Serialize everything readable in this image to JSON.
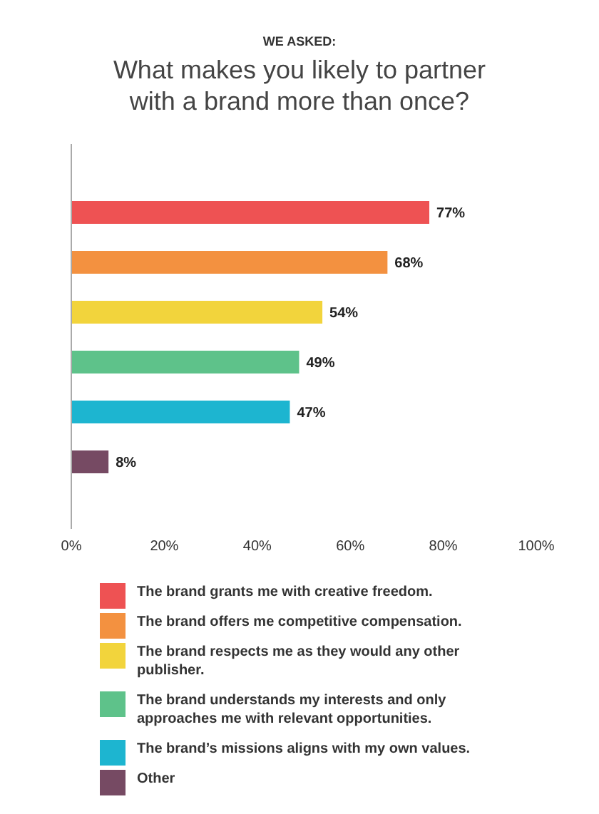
{
  "chart_data": {
    "type": "bar",
    "orientation": "horizontal",
    "subtitle": "WE ASKED:",
    "title": "What makes you likely to partner with a brand more than once?",
    "categories": [
      null
    ],
    "series": [
      {
        "name": "The brand grants me with creative freedom.",
        "color": "#ee5253",
        "values": [
          77
        ],
        "value_labels": [
          "77%"
        ]
      },
      {
        "name": "The brand offers me competitive compensation.",
        "color": "#f39140",
        "values": [
          68
        ],
        "value_labels": [
          "68%"
        ]
      },
      {
        "name": "The brand respects me as they would any other publisher.",
        "color": "#f2d43c",
        "values": [
          54
        ],
        "value_labels": [
          "54%"
        ]
      },
      {
        "name": "The brand understands my interests and only approaches me with relevant opportunities.",
        "color": "#5ec28a",
        "values": [
          49
        ],
        "value_labels": [
          "49%"
        ]
      },
      {
        "name": "The brand’s missions aligns with my own values.",
        "color": "#1db5d0",
        "values": [
          47
        ],
        "value_labels": [
          "47%"
        ]
      },
      {
        "name": "Other",
        "color": "#764a63",
        "values": [
          8
        ],
        "value_labels": [
          "8%"
        ]
      }
    ],
    "xlim": [
      0,
      100
    ],
    "xticks": [
      {
        "value": 0,
        "label": "0%"
      },
      {
        "value": 20,
        "label": "20%"
      },
      {
        "value": 40,
        "label": "40%"
      },
      {
        "value": 60,
        "label": "60%"
      },
      {
        "value": 80,
        "label": "80%"
      },
      {
        "value": 100,
        "label": "100%"
      }
    ],
    "tick_labels": "x",
    "grid": false,
    "legend": "bottom"
  }
}
